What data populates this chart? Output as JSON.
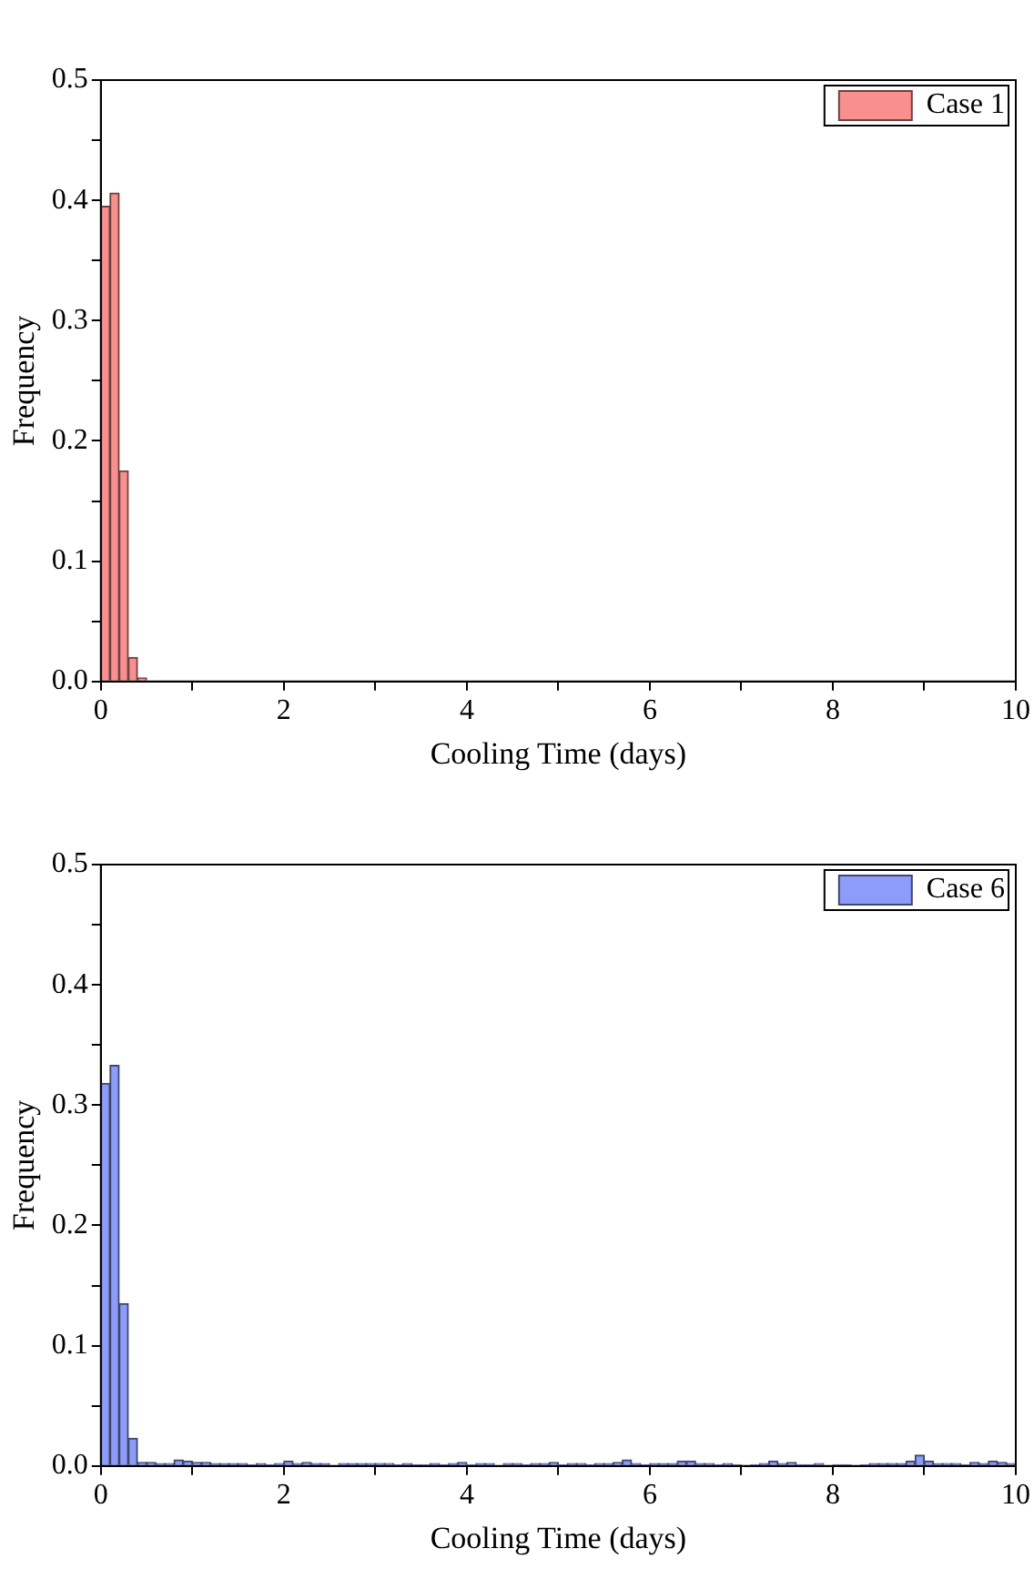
{
  "chart_data": [
    {
      "type": "histogram",
      "xlabel": "Cooling Time (days)",
      "ylabel": "Frequency",
      "legend": "top right",
      "grid": false,
      "bins": [
        0,
        0.1,
        0.2,
        0.3,
        0.4,
        0.5,
        0.6,
        0.7,
        0.8,
        0.9,
        1,
        1.1,
        1.2,
        1.3,
        1.4,
        1.5,
        1.6,
        1.7,
        1.8,
        1.9,
        2,
        2.1,
        2.2,
        2.3,
        2.4,
        2.5,
        2.6,
        2.7,
        2.8,
        2.9,
        3,
        3.1,
        3.2,
        3.3,
        3.4,
        3.5,
        3.6,
        3.7,
        3.8,
        3.9,
        4,
        4.1,
        4.2,
        4.3,
        4.4,
        4.5,
        4.6,
        4.7,
        4.8,
        4.9,
        5,
        5.1,
        5.2,
        5.3,
        5.4,
        5.5,
        5.6,
        5.7,
        5.8,
        5.9,
        6,
        6.1,
        6.2,
        6.3,
        6.4,
        6.5,
        6.6,
        6.7,
        6.8,
        6.9,
        7,
        7.1,
        7.2,
        7.3,
        7.4,
        7.5,
        7.6,
        7.7,
        7.8,
        7.9,
        8,
        8.1,
        8.2,
        8.3,
        8.4,
        8.5,
        8.6,
        8.7,
        8.8,
        8.9,
        9,
        9.1,
        9.2,
        9.3,
        9.4,
        9.5,
        9.6,
        9.7,
        9.8,
        9.9,
        10
      ],
      "series": [
        {
          "name": "Case 1",
          "color": "#f89090",
          "values": [
            0.395,
            0.406,
            0.175,
            0.02,
            0.003,
            0,
            0,
            0,
            0,
            0,
            0,
            0,
            0,
            0,
            0,
            0,
            0,
            0,
            0,
            0,
            0,
            0,
            0,
            0,
            0,
            0,
            0,
            0,
            0,
            0,
            0,
            0,
            0,
            0,
            0,
            0,
            0,
            0,
            0,
            0,
            0,
            0,
            0,
            0,
            0,
            0,
            0,
            0,
            0,
            0,
            0,
            0,
            0,
            0,
            0,
            0,
            0,
            0,
            0,
            0,
            0,
            0,
            0,
            0,
            0,
            0,
            0,
            0,
            0,
            0,
            0,
            0,
            0,
            0,
            0,
            0,
            0,
            0,
            0,
            0,
            0,
            0,
            0,
            0,
            0,
            0,
            0,
            0,
            0,
            0,
            0,
            0,
            0,
            0,
            0,
            0,
            0,
            0,
            0,
            0
          ]
        }
      ],
      "xlim": [
        0,
        10
      ],
      "xticks": [
        0,
        {
          "value": 1,
          "label": null
        },
        2,
        {
          "value": 3,
          "label": null
        },
        4,
        {
          "value": 5,
          "label": null
        },
        6,
        {
          "value": 7,
          "label": null
        },
        8,
        {
          "value": 9,
          "label": null
        },
        10
      ],
      "ylim": [
        0,
        0.5
      ],
      "yticks": [
        {
          "value": 0,
          "label": "0.0"
        },
        {
          "value": 0.05,
          "label": null
        },
        0.1,
        {
          "value": 0.15,
          "label": null
        },
        0.2,
        {
          "value": 0.25,
          "label": null
        },
        0.3,
        {
          "value": 0.35,
          "label": null
        },
        0.4,
        {
          "value": 0.45,
          "label": null
        },
        0.5
      ]
    },
    {
      "type": "histogram",
      "xlabel": "Cooling Time (days)",
      "ylabel": "Frequency",
      "legend": "top right",
      "grid": false,
      "bins": [
        0,
        0.1,
        0.2,
        0.3,
        0.4,
        0.5,
        0.6,
        0.7,
        0.8,
        0.9,
        1,
        1.1,
        1.2,
        1.3,
        1.4,
        1.5,
        1.6,
        1.7,
        1.8,
        1.9,
        2,
        2.1,
        2.2,
        2.3,
        2.4,
        2.5,
        2.6,
        2.7,
        2.8,
        2.9,
        3,
        3.1,
        3.2,
        3.3,
        3.4,
        3.5,
        3.6,
        3.7,
        3.8,
        3.9,
        4,
        4.1,
        4.2,
        4.3,
        4.4,
        4.5,
        4.6,
        4.7,
        4.8,
        4.9,
        5,
        5.1,
        5.2,
        5.3,
        5.4,
        5.5,
        5.6,
        5.7,
        5.8,
        5.9,
        6,
        6.1,
        6.2,
        6.3,
        6.4,
        6.5,
        6.6,
        6.7,
        6.8,
        6.9,
        7,
        7.1,
        7.2,
        7.3,
        7.4,
        7.5,
        7.6,
        7.7,
        7.8,
        7.9,
        8,
        8.1,
        8.2,
        8.3,
        8.4,
        8.5,
        8.6,
        8.7,
        8.8,
        8.9,
        9,
        9.1,
        9.2,
        9.3,
        9.4,
        9.5,
        9.6,
        9.7,
        9.8,
        9.9,
        10
      ],
      "series": [
        {
          "name": "Case 6",
          "color": "#8c9cf8",
          "values": [
            0.318,
            0.333,
            0.135,
            0.023,
            0.003,
            0.003,
            0.002,
            0.002,
            0.005,
            0.004,
            0.003,
            0.003,
            0.002,
            0.002,
            0.002,
            0.002,
            0.001,
            0.002,
            0.001,
            0.002,
            0.004,
            0.002,
            0.003,
            0.002,
            0.002,
            0,
            0.002,
            0.002,
            0.002,
            0.002,
            0.002,
            0.002,
            0.001,
            0.002,
            0.001,
            0.001,
            0.002,
            0.001,
            0.002,
            0.003,
            0.001,
            0.002,
            0.002,
            0,
            0.002,
            0.002,
            0.001,
            0.002,
            0.002,
            0.003,
            0.001,
            0.002,
            0.002,
            0.001,
            0.002,
            0.002,
            0.003,
            0.005,
            0.002,
            0.001,
            0.002,
            0.002,
            0.002,
            0.004,
            0.004,
            0.002,
            0.002,
            0.001,
            0.002,
            0.001,
            0,
            0.001,
            0.002,
            0.004,
            0.002,
            0.003,
            0.001,
            0.001,
            0.002,
            0,
            0.001,
            0.001,
            0,
            0.001,
            0.002,
            0.002,
            0.002,
            0.002,
            0.004,
            0.009,
            0.004,
            0.002,
            0.002,
            0.002,
            0.001,
            0.003,
            0.002,
            0.004,
            0.003,
            0.002
          ]
        }
      ],
      "xlim": [
        0,
        10
      ],
      "xticks": [
        0,
        {
          "value": 1,
          "label": null
        },
        2,
        {
          "value": 3,
          "label": null
        },
        4,
        {
          "value": 5,
          "label": null
        },
        6,
        {
          "value": 7,
          "label": null
        },
        8,
        {
          "value": 9,
          "label": null
        },
        10
      ],
      "ylim": [
        0,
        0.5
      ],
      "yticks": [
        {
          "value": 0,
          "label": "0.0"
        },
        {
          "value": 0.05,
          "label": null
        },
        0.1,
        {
          "value": 0.15,
          "label": null
        },
        0.2,
        {
          "value": 0.25,
          "label": null
        },
        0.3,
        {
          "value": 0.35,
          "label": null
        },
        0.4,
        {
          "value": 0.45,
          "label": null
        },
        0.5
      ]
    }
  ]
}
